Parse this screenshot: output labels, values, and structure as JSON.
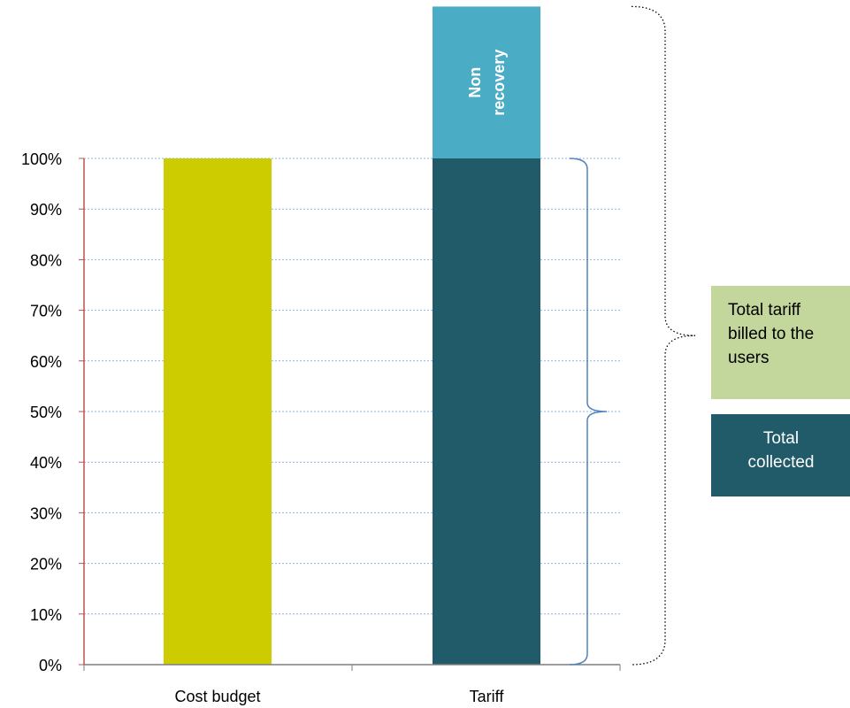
{
  "chart_data": {
    "type": "bar",
    "stacked": true,
    "categories": [
      "Cost budget",
      "Tariff"
    ],
    "y_ticks": [
      "0%",
      "10%",
      "20%",
      "30%",
      "40%",
      "50%",
      "60%",
      "70%",
      "80%",
      "90%",
      "100%"
    ],
    "ylim": [
      0,
      100
    ],
    "grid": true,
    "bars": [
      {
        "category": "Cost budget",
        "segments": [
          {
            "label": "",
            "value": 100,
            "color": "#cccc00"
          }
        ]
      },
      {
        "category": "Tariff",
        "segments": [
          {
            "label": "",
            "value": 100,
            "color": "#215a69"
          },
          {
            "label": "Non recovery",
            "label_lines": [
              "Non",
              "recovery"
            ],
            "value": 30,
            "color": "#4bacc6"
          }
        ]
      }
    ],
    "annotations": [
      {
        "name": "total-tariff-billed",
        "text_lines": [
          "Total tariff",
          "billed to the",
          "users"
        ],
        "box_color": "#c3d69b",
        "text_color": "#000000",
        "bracket": "dotted",
        "bracket_color": "#000000",
        "spans": [
          0,
          130
        ]
      },
      {
        "name": "total-collected",
        "text_lines": [
          "Total",
          "collected"
        ],
        "box_color": "#215a69",
        "text_color": "#ffffff",
        "bracket": "solid",
        "bracket_color": "#4f81bd",
        "spans": [
          0,
          100
        ]
      }
    ],
    "colors": {
      "gridline": "#8eb4e3",
      "y_axis_line": "#c0504d",
      "x_axis_line": "#7f7f7f"
    }
  }
}
